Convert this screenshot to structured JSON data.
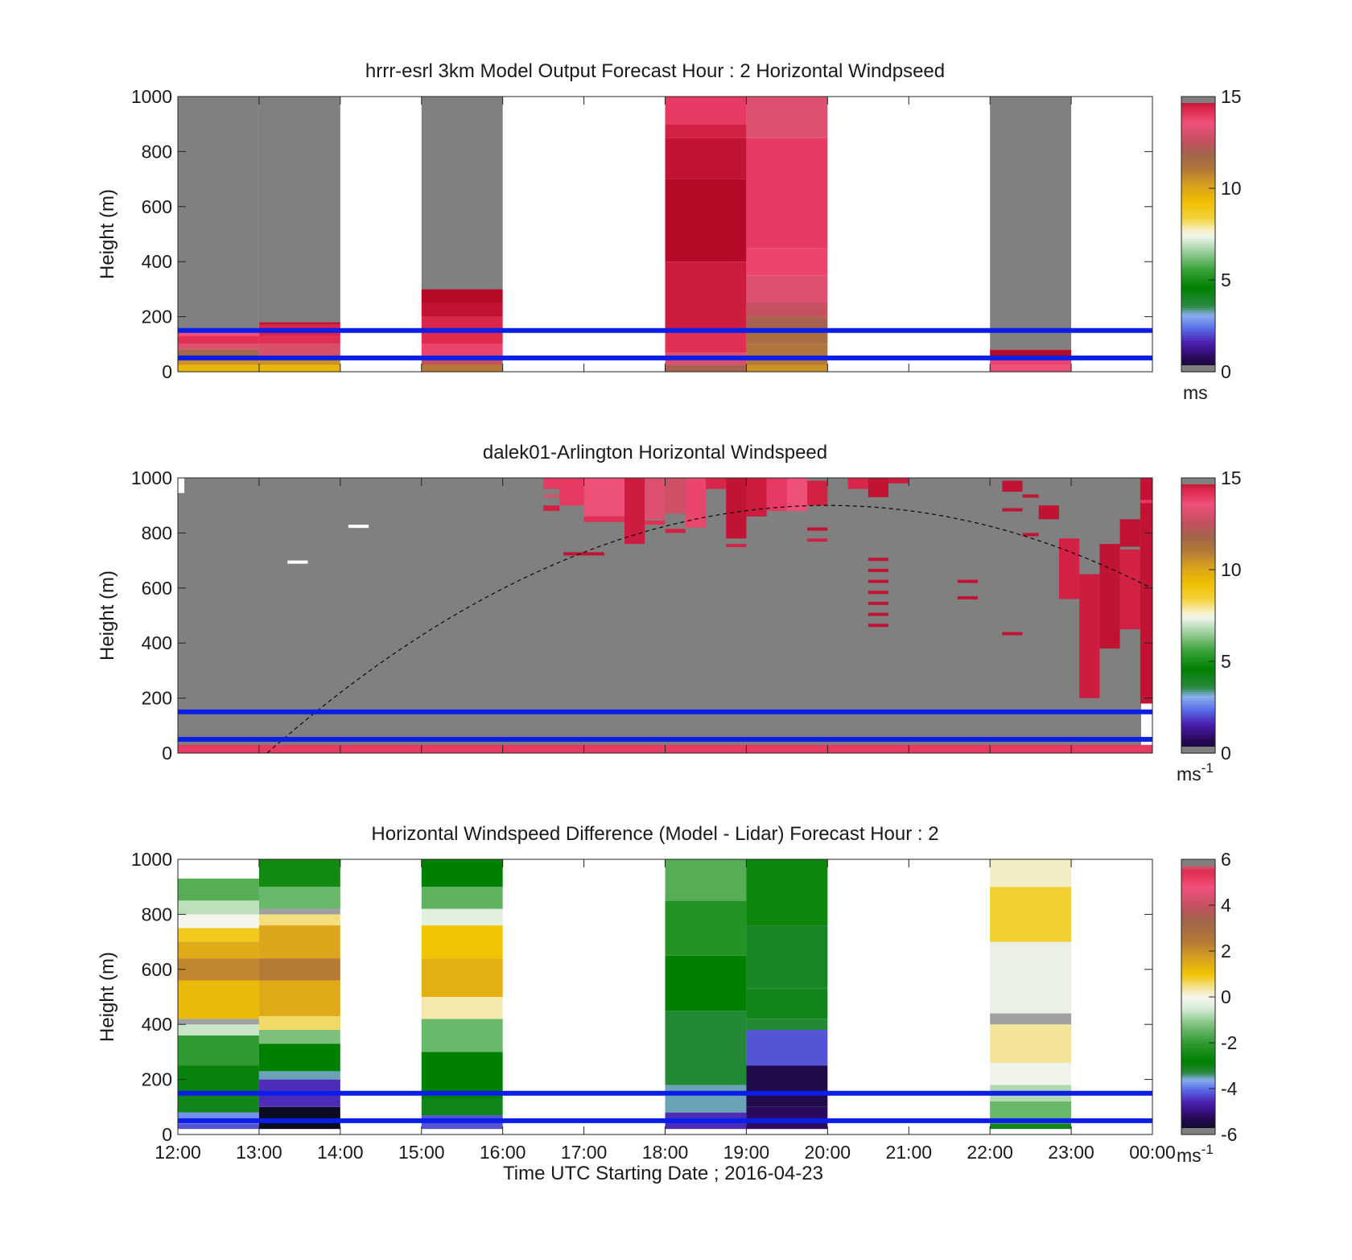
{
  "chart_data": [
    {
      "type": "heatmap",
      "id": "model",
      "title": "hrrr-esrl 3km Model Output   Forecast Hour : 2 Horizontal Windpseed",
      "ylabel": "Height (m)",
      "ylim": [
        0,
        1000
      ],
      "yticks": [
        "0",
        "200",
        "400",
        "600",
        "800",
        "1000"
      ],
      "xlim": [
        0,
        12
      ],
      "grid": false,
      "reference_lines_m": [
        50,
        150
      ],
      "reference_line_color": "#0a1ee8",
      "colorbar": {
        "min": 0,
        "max": 15,
        "ticks": [
          "0",
          "5",
          "10",
          "15"
        ],
        "unit": "ms",
        "colormap": "windspeed"
      },
      "columns": [
        {
          "x": 0,
          "cells": [
            [
              0,
              25,
              9.5
            ],
            [
              25,
              50,
              10.5
            ],
            [
              50,
              80,
              11.8
            ],
            [
              80,
              100,
              13.2
            ],
            [
              100,
              130,
              14.2
            ],
            [
              130,
              150,
              13.6
            ],
            [
              150,
              1000,
              null
            ]
          ]
        },
        {
          "x": 1,
          "cells": [
            [
              0,
              25,
              9.5
            ],
            [
              25,
              50,
              10.5
            ],
            [
              50,
              100,
              13.0
            ],
            [
              100,
              130,
              14.2
            ],
            [
              130,
              170,
              14.4
            ],
            [
              170,
              180,
              14.8
            ],
            [
              180,
              1000,
              null
            ]
          ]
        },
        {
          "x": 3,
          "cells": [
            [
              0,
              25,
              11.0
            ],
            [
              25,
              60,
              12.5
            ],
            [
              60,
              100,
              13.8
            ],
            [
              100,
              150,
              14.3
            ],
            [
              150,
              200,
              14.4
            ],
            [
              200,
              250,
              14.8
            ],
            [
              250,
              300,
              15.0
            ],
            [
              300,
              1000,
              null
            ]
          ]
        },
        {
          "x": 6,
          "cells": [
            [
              0,
              25,
              12.0
            ],
            [
              25,
              70,
              13.2
            ],
            [
              70,
              150,
              14.2
            ],
            [
              150,
              400,
              14.6
            ],
            [
              400,
              700,
              15.0
            ],
            [
              700,
              850,
              14.8
            ],
            [
              850,
              900,
              14.5
            ],
            [
              900,
              1000,
              14.0
            ]
          ]
        },
        {
          "x": 7,
          "cells": [
            [
              0,
              25,
              10.5
            ],
            [
              25,
              60,
              11.0
            ],
            [
              60,
              100,
              11.2
            ],
            [
              100,
              150,
              11.5
            ],
            [
              150,
              200,
              12.0
            ],
            [
              200,
              250,
              12.6
            ],
            [
              250,
              350,
              13.2
            ],
            [
              350,
              450,
              13.8
            ],
            [
              450,
              850,
              14.0
            ],
            [
              850,
              1000,
              13.2
            ]
          ]
        },
        {
          "x": 10,
          "cells": [
            [
              0,
              25,
              13.5
            ],
            [
              25,
              50,
              13.8
            ],
            [
              50,
              80,
              15.0
            ],
            [
              80,
              1000,
              null
            ]
          ]
        }
      ]
    },
    {
      "type": "heatmap",
      "id": "lidar",
      "title": "dalek01-Arlington  Horizontal Windspeed",
      "ylabel": "Height (m)",
      "ylim": [
        0,
        1000
      ],
      "yticks": [
        "0",
        "200",
        "400",
        "600",
        "800",
        "1000"
      ],
      "xlim": [
        0,
        12
      ],
      "grid": false,
      "reference_lines_m": [
        50,
        150
      ],
      "reference_line_color": "#0a1ee8",
      "background_value": null,
      "colorbar": {
        "min": 0,
        "max": 15,
        "ticks": [
          "0",
          "5",
          "10",
          "15"
        ],
        "unit": "ms-1",
        "colormap": "windspeed"
      },
      "cells": [
        [
          0.0,
          0.08,
          945,
          1000,
          7.6
        ],
        [
          1.35,
          1.6,
          690,
          700,
          7.6
        ],
        [
          2.1,
          2.35,
          820,
          830,
          7.6
        ],
        [
          4.5,
          4.7,
          960,
          1000,
          14.0
        ],
        [
          4.5,
          4.7,
          930,
          940,
          13.0
        ],
        [
          4.5,
          4.7,
          880,
          900,
          14.5
        ],
        [
          4.7,
          5.0,
          900,
          1000,
          14.0
        ],
        [
          4.75,
          5.25,
          730,
          720,
          14.8
        ],
        [
          5.0,
          5.5,
          860,
          1000,
          13.5
        ],
        [
          5.0,
          5.5,
          840,
          860,
          14.2
        ],
        [
          5.5,
          5.75,
          760,
          1000,
          14.6
        ],
        [
          5.75,
          6.0,
          850,
          1000,
          13.2
        ],
        [
          5.75,
          6.0,
          830,
          845,
          14.2
        ],
        [
          6.0,
          6.25,
          870,
          1000,
          12.8
        ],
        [
          6.0,
          6.25,
          800,
          815,
          14.5
        ],
        [
          6.25,
          6.5,
          820,
          1000,
          13.8
        ],
        [
          6.5,
          6.75,
          960,
          1000,
          14.4
        ],
        [
          6.75,
          7.0,
          780,
          1000,
          14.8
        ],
        [
          6.75,
          7.0,
          750,
          760,
          14.5
        ],
        [
          7.0,
          7.25,
          860,
          1000,
          14.6
        ],
        [
          7.25,
          7.5,
          880,
          1000,
          14.0
        ],
        [
          7.5,
          7.75,
          880,
          1000,
          13.5
        ],
        [
          7.75,
          8.0,
          900,
          990,
          14.5
        ],
        [
          7.75,
          8.0,
          810,
          820,
          14.8
        ],
        [
          7.75,
          8.0,
          770,
          780,
          14.5
        ],
        [
          8.25,
          8.5,
          960,
          1000,
          14.4
        ],
        [
          8.5,
          8.75,
          930,
          1000,
          14.8
        ],
        [
          8.75,
          9.0,
          980,
          1000,
          14.6
        ],
        [
          8.5,
          8.75,
          700,
          710,
          14.8
        ],
        [
          8.5,
          8.75,
          660,
          670,
          14.8
        ],
        [
          8.5,
          8.75,
          620,
          630,
          14.8
        ],
        [
          8.5,
          8.75,
          580,
          590,
          14.8
        ],
        [
          8.5,
          8.75,
          540,
          550,
          14.8
        ],
        [
          8.5,
          8.75,
          500,
          510,
          14.8
        ],
        [
          8.5,
          8.75,
          460,
          470,
          14.8
        ],
        [
          9.6,
          9.85,
          620,
          630,
          14.8
        ],
        [
          9.6,
          9.85,
          560,
          570,
          14.8
        ],
        [
          10.15,
          10.4,
          950,
          990,
          14.8
        ],
        [
          10.15,
          10.4,
          880,
          890,
          14.8
        ],
        [
          10.15,
          10.4,
          430,
          440,
          14.8
        ],
        [
          10.4,
          10.6,
          930,
          940,
          14.8
        ],
        [
          10.4,
          10.6,
          790,
          800,
          14.8
        ],
        [
          10.6,
          10.85,
          850,
          900,
          14.8
        ],
        [
          10.85,
          11.1,
          560,
          780,
          14.5
        ],
        [
          11.1,
          11.35,
          200,
          650,
          14.6
        ],
        [
          11.35,
          11.6,
          380,
          760,
          14.8
        ],
        [
          11.6,
          11.85,
          750,
          850,
          14.8
        ],
        [
          11.6,
          11.85,
          450,
          740,
          14.5
        ],
        [
          11.85,
          12.0,
          180,
          1000,
          14.8
        ],
        [
          11.85,
          12.0,
          910,
          920,
          14.0
        ],
        [
          0.0,
          12.0,
          0,
          30,
          14.0
        ]
      ],
      "annotation_curve": {
        "style": "dashed",
        "peak_x": 8.0,
        "peak_y_m": 900,
        "zero_x": 1.1
      }
    },
    {
      "type": "heatmap",
      "id": "difference",
      "title": "Horizontal Windspeed Difference (Model - Lidar) Forecast Hour : 2",
      "ylabel": "Height (m)",
      "xlabel": "Time UTC  Starting Date ; 2016-04-23",
      "ylim": [
        0,
        1000
      ],
      "yticks": [
        "0",
        "200",
        "400",
        "600",
        "800",
        "1000"
      ],
      "xlim": [
        0,
        12
      ],
      "xticks": [
        "12:00",
        "13:00",
        "14:00",
        "15:00",
        "16:00",
        "17:00",
        "18:00",
        "19:00",
        "20:00",
        "21:00",
        "22:00",
        "23:00",
        "00:00"
      ],
      "grid": false,
      "reference_lines_m": [
        50,
        150
      ],
      "reference_line_color": "#0a1ee8",
      "colorbar": {
        "min": -6,
        "max": 6,
        "ticks": [
          "-6",
          "-4",
          "-2",
          "0",
          "2",
          "4",
          "6"
        ],
        "unit": "ms-1",
        "colormap": "difference"
      },
      "columns": [
        {
          "x": 0,
          "cells": [
            [
              20,
              40,
              -4.2
            ],
            [
              40,
              80,
              -3.8
            ],
            [
              80,
              150,
              -3.0
            ],
            [
              150,
              250,
              -2.9
            ],
            [
              250,
              360,
              -2.0
            ],
            [
              360,
              400,
              -0.6
            ],
            [
              400,
              420,
              -6.0
            ],
            [
              420,
              560,
              1.2
            ],
            [
              560,
              640,
              2.2
            ],
            [
              640,
              700,
              1.5
            ],
            [
              700,
              750,
              0.9
            ],
            [
              750,
              800,
              0.0
            ],
            [
              800,
              850,
              -0.7
            ],
            [
              850,
              930,
              -1.6
            ]
          ]
        },
        {
          "x": 1,
          "cells": [
            [
              20,
              100,
              -5.8
            ],
            [
              100,
              200,
              -4.5
            ],
            [
              200,
              230,
              -3.5
            ],
            [
              230,
              330,
              -2.8
            ],
            [
              330,
              380,
              -1.2
            ],
            [
              380,
              430,
              0.6
            ],
            [
              430,
              560,
              1.5
            ],
            [
              560,
              640,
              2.4
            ],
            [
              640,
              760,
              1.6
            ],
            [
              760,
              800,
              0.5
            ],
            [
              800,
              820,
              -6.0
            ],
            [
              820,
              900,
              -1.4
            ],
            [
              900,
              1000,
              -2.5
            ]
          ]
        },
        {
          "x": 3,
          "cells": [
            [
              20,
              70,
              -4.2
            ],
            [
              70,
              130,
              -3.0
            ],
            [
              130,
              300,
              -2.8
            ],
            [
              300,
              420,
              -1.4
            ],
            [
              420,
              500,
              0.3
            ],
            [
              500,
              640,
              1.4
            ],
            [
              640,
              760,
              1.0
            ],
            [
              760,
              820,
              -0.3
            ],
            [
              820,
              900,
              -1.5
            ],
            [
              900,
              1000,
              -2.8
            ]
          ]
        },
        {
          "x": 6,
          "cells": [
            [
              20,
              80,
              -4.5
            ],
            [
              80,
              180,
              -3.5
            ],
            [
              180,
              450,
              -3.2
            ],
            [
              450,
              650,
              -2.8
            ],
            [
              650,
              850,
              -2.2
            ],
            [
              850,
              1000,
              -1.6
            ]
          ]
        },
        {
          "x": 7,
          "cells": [
            [
              20,
              100,
              -5.2
            ],
            [
              100,
              250,
              -5.4
            ],
            [
              250,
              380,
              -4.2
            ],
            [
              380,
              420,
              -3.2
            ],
            [
              420,
              530,
              -3.0
            ],
            [
              530,
              760,
              -3.1
            ],
            [
              760,
              1000,
              -2.6
            ]
          ]
        },
        {
          "x": 10,
          "cells": [
            [
              20,
              40,
              -3.0
            ],
            [
              40,
              120,
              -1.4
            ],
            [
              120,
              180,
              -0.8
            ],
            [
              180,
              260,
              -0.1
            ],
            [
              260,
              400,
              0.4
            ],
            [
              400,
              440,
              -6.0
            ],
            [
              440,
              700,
              -0.2
            ],
            [
              700,
              900,
              0.8
            ],
            [
              900,
              1000,
              0.2
            ]
          ]
        }
      ]
    }
  ]
}
